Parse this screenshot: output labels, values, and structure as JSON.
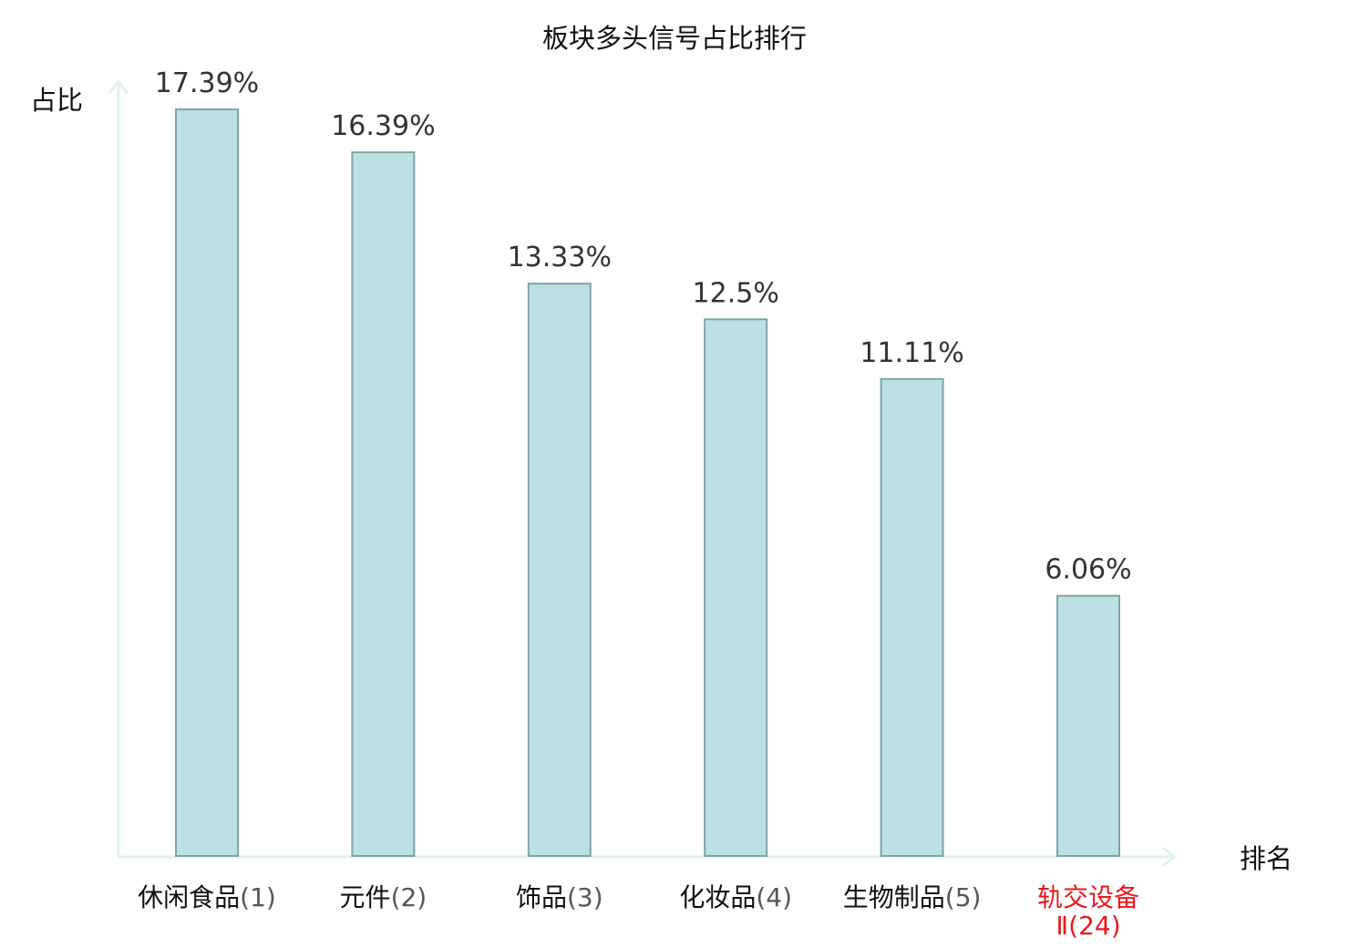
{
  "chart_data": {
    "type": "bar",
    "title": "板块多头信号占比排行",
    "ylabel": "占比",
    "xlabel": "排名",
    "categories": [
      {
        "name": "休闲食品",
        "rank": "(1)",
        "highlight": false
      },
      {
        "name": "元件",
        "rank": "(2)",
        "highlight": false
      },
      {
        "name": "饰品",
        "rank": "(3)",
        "highlight": false
      },
      {
        "name": "化妆品",
        "rank": "(4)",
        "highlight": false
      },
      {
        "name": "生物制品",
        "rank": "(5)",
        "highlight": false
      },
      {
        "name": "轨交设备",
        "name_line2": "Ⅱ",
        "rank": "(24)",
        "highlight": true
      }
    ],
    "values": [
      17.39,
      16.39,
      13.33,
      12.5,
      11.11,
      6.06
    ],
    "value_labels": [
      "17.39%",
      "16.39%",
      "13.33%",
      "12.5%",
      "11.11%",
      "6.06%"
    ],
    "ylim": [
      0,
      17.39
    ],
    "grid": false,
    "legend": "none"
  },
  "colors": {
    "bar_fill": "#bde0e3",
    "bar_stroke": "#7fa5a8",
    "axis": "#dff2ee",
    "text": "#111111",
    "value_text": "#333333",
    "rank_text": "#555555",
    "highlight": "#e8191c"
  }
}
